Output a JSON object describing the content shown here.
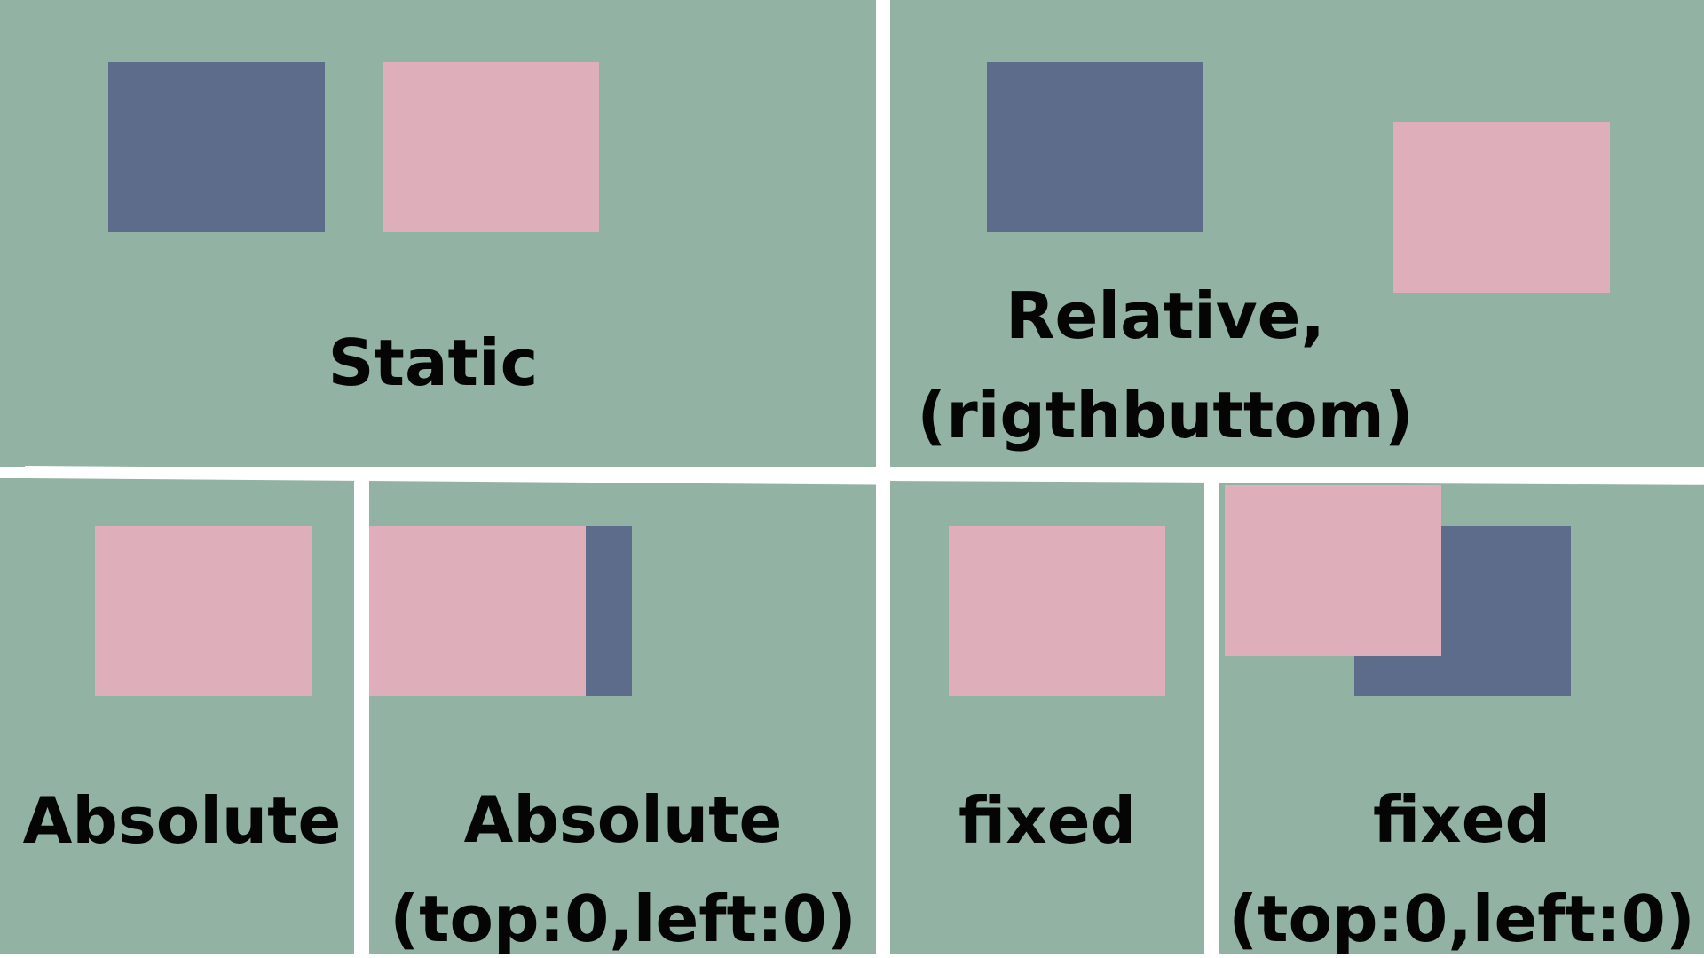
{
  "colors": {
    "panel_background": "#92b3a3",
    "blue_box": "#5e6c8c",
    "pink_box": "#dfaebb",
    "divider": "#ffffff",
    "text": "#050505"
  },
  "panels": {
    "static": {
      "label": "Static"
    },
    "relative": {
      "label_line1": "Relative,",
      "label_line2": "(rigthbuttom)"
    },
    "absolute": {
      "label": "Absolute"
    },
    "absolute_top_left": {
      "label_line1": "Absolute",
      "label_line2": "(top:0,left:0)"
    },
    "fixed": {
      "label": "fixed"
    },
    "fixed_top_left": {
      "label_line1": "fixed",
      "label_line2": "(top:0,left:0)"
    }
  }
}
